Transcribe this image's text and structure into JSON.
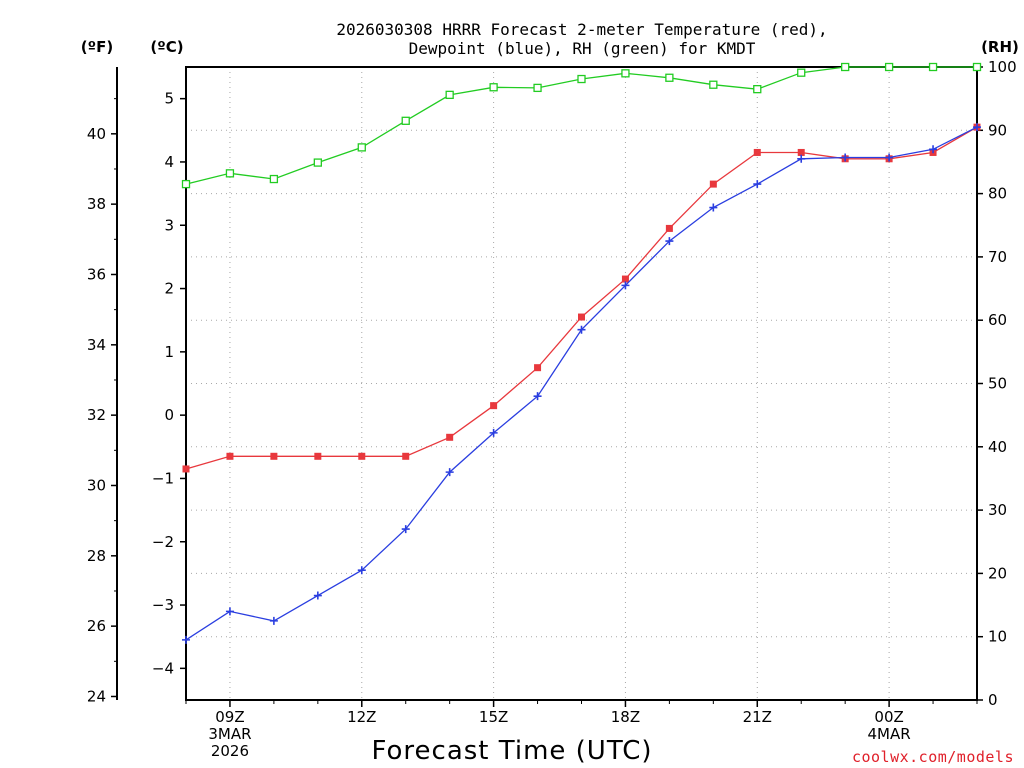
{
  "chart_data": {
    "type": "line",
    "title": [
      "2026030308 HRRR Forecast 2-meter Temperature (red),",
      "Dewpoint (blue), RH (green) for KMDT"
    ],
    "xlabel": "Forecast Time (UTC)",
    "unit_labels": {
      "fahrenheit": "(ºF)",
      "celsius": "(ºC)",
      "rh": "(RH)"
    },
    "credit": "coolwx.com/models",
    "x_hours": [
      0,
      1,
      2,
      3,
      4,
      5,
      6,
      7,
      8,
      9,
      10,
      11,
      12,
      13,
      14,
      15,
      16,
      17,
      18
    ],
    "x_ticks": [
      {
        "hour": 1,
        "lines": [
          "09Z",
          "3MAR",
          "2026"
        ]
      },
      {
        "hour": 4,
        "lines": [
          "12Z"
        ]
      },
      {
        "hour": 7,
        "lines": [
          "15Z"
        ]
      },
      {
        "hour": 10,
        "lines": [
          "18Z"
        ]
      },
      {
        "hour": 13,
        "lines": [
          "21Z"
        ]
      },
      {
        "hour": 16,
        "lines": [
          "00Z",
          "4MAR"
        ]
      }
    ],
    "celsius_axis": {
      "min": -4.5,
      "max": 5.5,
      "ticks": [
        -4,
        -3,
        -2,
        -1,
        0,
        1,
        2,
        3,
        4,
        5
      ]
    },
    "fahrenheit_axis": {
      "ticks": [
        24,
        26,
        28,
        30,
        32,
        34,
        36,
        38,
        40
      ]
    },
    "rh_axis": {
      "min": 0,
      "max": 100,
      "ticks": [
        0,
        10,
        20,
        30,
        40,
        50,
        60,
        70,
        80,
        90,
        100
      ]
    },
    "series": [
      {
        "name": "Temperature",
        "axis": "celsius",
        "color": "#e8383d",
        "marker": "square",
        "values": [
          -0.85,
          -0.65,
          -0.65,
          -0.65,
          -0.65,
          -0.65,
          -0.35,
          0.15,
          0.75,
          1.55,
          2.15,
          2.95,
          3.65,
          4.15,
          4.15,
          4.05,
          4.05,
          4.15,
          4.55
        ]
      },
      {
        "name": "Dewpoint",
        "axis": "celsius",
        "color": "#2a3ee0",
        "marker": "plus",
        "values": [
          -3.55,
          -3.1,
          -3.25,
          -2.85,
          -2.45,
          -1.8,
          -0.9,
          -0.28,
          0.3,
          1.35,
          2.05,
          2.75,
          3.28,
          3.65,
          4.05,
          4.07,
          4.07,
          4.2,
          4.55
        ]
      },
      {
        "name": "RH",
        "axis": "rh",
        "color": "#22cc22",
        "marker": "open-square",
        "values": [
          81.5,
          83.2,
          82.3,
          84.9,
          87.3,
          91.5,
          95.6,
          96.8,
          96.7,
          98.1,
          99.0,
          98.3,
          97.2,
          96.5,
          99.1,
          100,
          100,
          100,
          100
        ]
      }
    ]
  }
}
